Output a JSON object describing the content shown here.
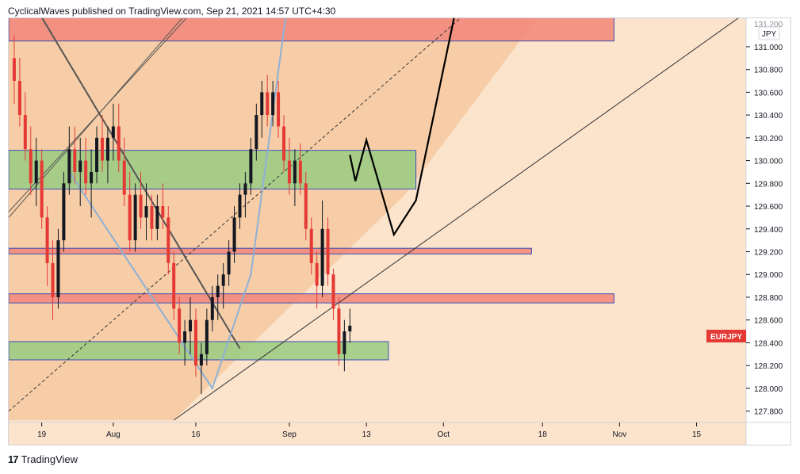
{
  "header": {
    "published_text": "CyclicalWaves published on TradingView.com, Sep 21, 2021 14:57 UTC+4:30"
  },
  "footer": {
    "logo_glyph": "17",
    "brand": "TradingView"
  },
  "colors": {
    "background": "#fbe3cc",
    "channel_fill": "#f6cda6",
    "red_zone": "#f28b7d",
    "green_zone": "#9fcc85",
    "zone_border": "#3b4fb8",
    "candle_up": "#131722",
    "candle_down": "#e53935",
    "price_label_bg": "#e53935",
    "projection": "#000000",
    "zigzag": "#8fb0d6"
  },
  "chart_data": {
    "type": "candlestick",
    "symbol_label": "EURJPY",
    "currency_label": "JPY",
    "last_price_label": "EURJPY",
    "y_ticks": [
      "131.000",
      "130.800",
      "130.600",
      "130.400",
      "130.200",
      "130.000",
      "129.800",
      "129.600",
      "129.400",
      "129.200",
      "129.000",
      "128.800",
      "128.600",
      "128.400",
      "128.200",
      "128.000",
      "127.800"
    ],
    "y_tick_values": [
      131.0,
      130.8,
      130.6,
      130.4,
      130.2,
      130.0,
      129.8,
      129.6,
      129.4,
      129.2,
      129.0,
      128.8,
      128.6,
      128.4,
      128.2,
      128.0,
      127.8
    ],
    "y_top_partial_label": "131.200",
    "ylim": [
      127.7,
      131.25
    ],
    "x_tick_labels": [
      "19",
      "Aug",
      "16",
      "Sep",
      "13",
      "Oct",
      "18",
      "Nov",
      "15"
    ],
    "x_tick_days": [
      0,
      13,
      28,
      45,
      59,
      73,
      91,
      105,
      119
    ],
    "x_range_days": [
      -6,
      128
    ],
    "zones": [
      {
        "kind": "resistance",
        "color": "red",
        "y_low": 131.05,
        "y_high": 131.3,
        "x_start_day": -6,
        "x_end_day": 104
      },
      {
        "kind": "supply",
        "color": "green",
        "y_low": 129.75,
        "y_high": 130.09,
        "x_start_day": -6,
        "x_end_day": 68
      },
      {
        "kind": "level",
        "color": "red",
        "y_low": 129.18,
        "y_high": 129.23,
        "x_start_day": -6,
        "x_end_day": 89
      },
      {
        "kind": "level",
        "color": "red",
        "y_low": 128.75,
        "y_high": 128.83,
        "x_start_day": -6,
        "x_end_day": 104
      },
      {
        "kind": "demand",
        "color": "green",
        "y_low": 128.25,
        "y_high": 128.41,
        "x_start_day": -6,
        "x_end_day": 63
      }
    ],
    "candles_ohlc": [
      [
        130.9,
        131.1,
        130.5,
        130.7
      ],
      [
        130.7,
        130.9,
        130.3,
        130.4
      ],
      [
        130.4,
        130.6,
        130.0,
        130.1
      ],
      [
        130.1,
        130.3,
        129.7,
        129.8
      ],
      [
        129.8,
        130.2,
        129.6,
        130.0
      ],
      [
        130.0,
        130.1,
        129.4,
        129.5
      ],
      [
        129.5,
        129.6,
        128.9,
        129.1
      ],
      [
        129.1,
        129.3,
        128.6,
        128.8
      ],
      [
        128.8,
        129.4,
        128.7,
        129.3
      ],
      [
        129.3,
        129.9,
        129.2,
        129.8
      ],
      [
        129.8,
        130.3,
        129.7,
        130.1
      ],
      [
        130.1,
        130.3,
        129.8,
        129.9
      ],
      [
        129.9,
        130.2,
        129.6,
        130.0
      ],
      [
        130.0,
        130.2,
        129.7,
        129.8
      ],
      [
        129.8,
        130.1,
        129.5,
        129.9
      ],
      [
        129.9,
        130.3,
        129.8,
        130.2
      ],
      [
        130.2,
        130.4,
        129.9,
        130.0
      ],
      [
        130.0,
        130.3,
        129.8,
        130.2
      ],
      [
        130.2,
        130.5,
        130.0,
        130.3
      ],
      [
        130.3,
        130.5,
        129.9,
        130.0
      ],
      [
        130.0,
        130.2,
        129.6,
        129.7
      ],
      [
        129.7,
        129.9,
        129.2,
        129.3
      ],
      [
        129.3,
        129.8,
        129.2,
        129.7
      ],
      [
        129.7,
        129.9,
        129.4,
        129.5
      ],
      [
        129.5,
        129.8,
        129.3,
        129.6
      ],
      [
        129.6,
        129.7,
        129.3,
        129.4
      ],
      [
        129.4,
        129.7,
        129.3,
        129.6
      ],
      [
        129.6,
        129.8,
        129.4,
        129.5
      ],
      [
        129.5,
        129.6,
        129.0,
        129.1
      ],
      [
        129.1,
        129.2,
        128.6,
        128.7
      ],
      [
        128.7,
        128.8,
        128.3,
        128.4
      ],
      [
        128.4,
        128.6,
        128.2,
        128.5
      ],
      [
        128.5,
        128.8,
        128.3,
        128.6
      ],
      [
        128.6,
        128.7,
        128.1,
        128.2
      ],
      [
        128.2,
        128.4,
        127.95,
        128.3
      ],
      [
        128.3,
        128.7,
        128.2,
        128.6
      ],
      [
        128.6,
        128.9,
        128.5,
        128.8
      ],
      [
        128.8,
        129.0,
        128.6,
        128.9
      ],
      [
        128.9,
        129.1,
        128.7,
        129.0
      ],
      [
        129.0,
        129.3,
        128.9,
        129.2
      ],
      [
        129.2,
        129.6,
        129.1,
        129.5
      ],
      [
        129.5,
        129.8,
        129.4,
        129.7
      ],
      [
        129.7,
        129.9,
        129.5,
        129.8
      ],
      [
        129.8,
        130.2,
        129.7,
        130.1
      ],
      [
        130.1,
        130.5,
        130.0,
        130.4
      ],
      [
        130.4,
        130.7,
        130.2,
        130.6
      ],
      [
        130.6,
        130.75,
        130.3,
        130.4
      ],
      [
        130.4,
        130.7,
        130.3,
        130.6
      ],
      [
        130.6,
        130.7,
        130.2,
        130.3
      ],
      [
        130.3,
        130.4,
        129.9,
        130.0
      ],
      [
        130.0,
        130.2,
        129.7,
        129.8
      ],
      [
        129.8,
        130.1,
        129.6,
        130.0
      ],
      [
        130.0,
        130.15,
        129.7,
        129.8
      ],
      [
        129.8,
        129.9,
        129.3,
        129.4
      ],
      [
        129.4,
        129.5,
        129.0,
        129.1
      ],
      [
        129.1,
        129.2,
        128.7,
        128.9
      ],
      [
        128.9,
        129.65,
        128.8,
        129.4
      ],
      [
        129.4,
        129.5,
        128.9,
        129.0
      ],
      [
        129.0,
        129.05,
        128.6,
        128.7
      ],
      [
        128.7,
        128.8,
        128.2,
        128.3
      ],
      [
        128.3,
        128.6,
        128.15,
        128.5
      ],
      [
        128.5,
        128.7,
        128.4,
        128.55
      ]
    ],
    "candles_start_day": -5,
    "candles_step_days": 1
  }
}
